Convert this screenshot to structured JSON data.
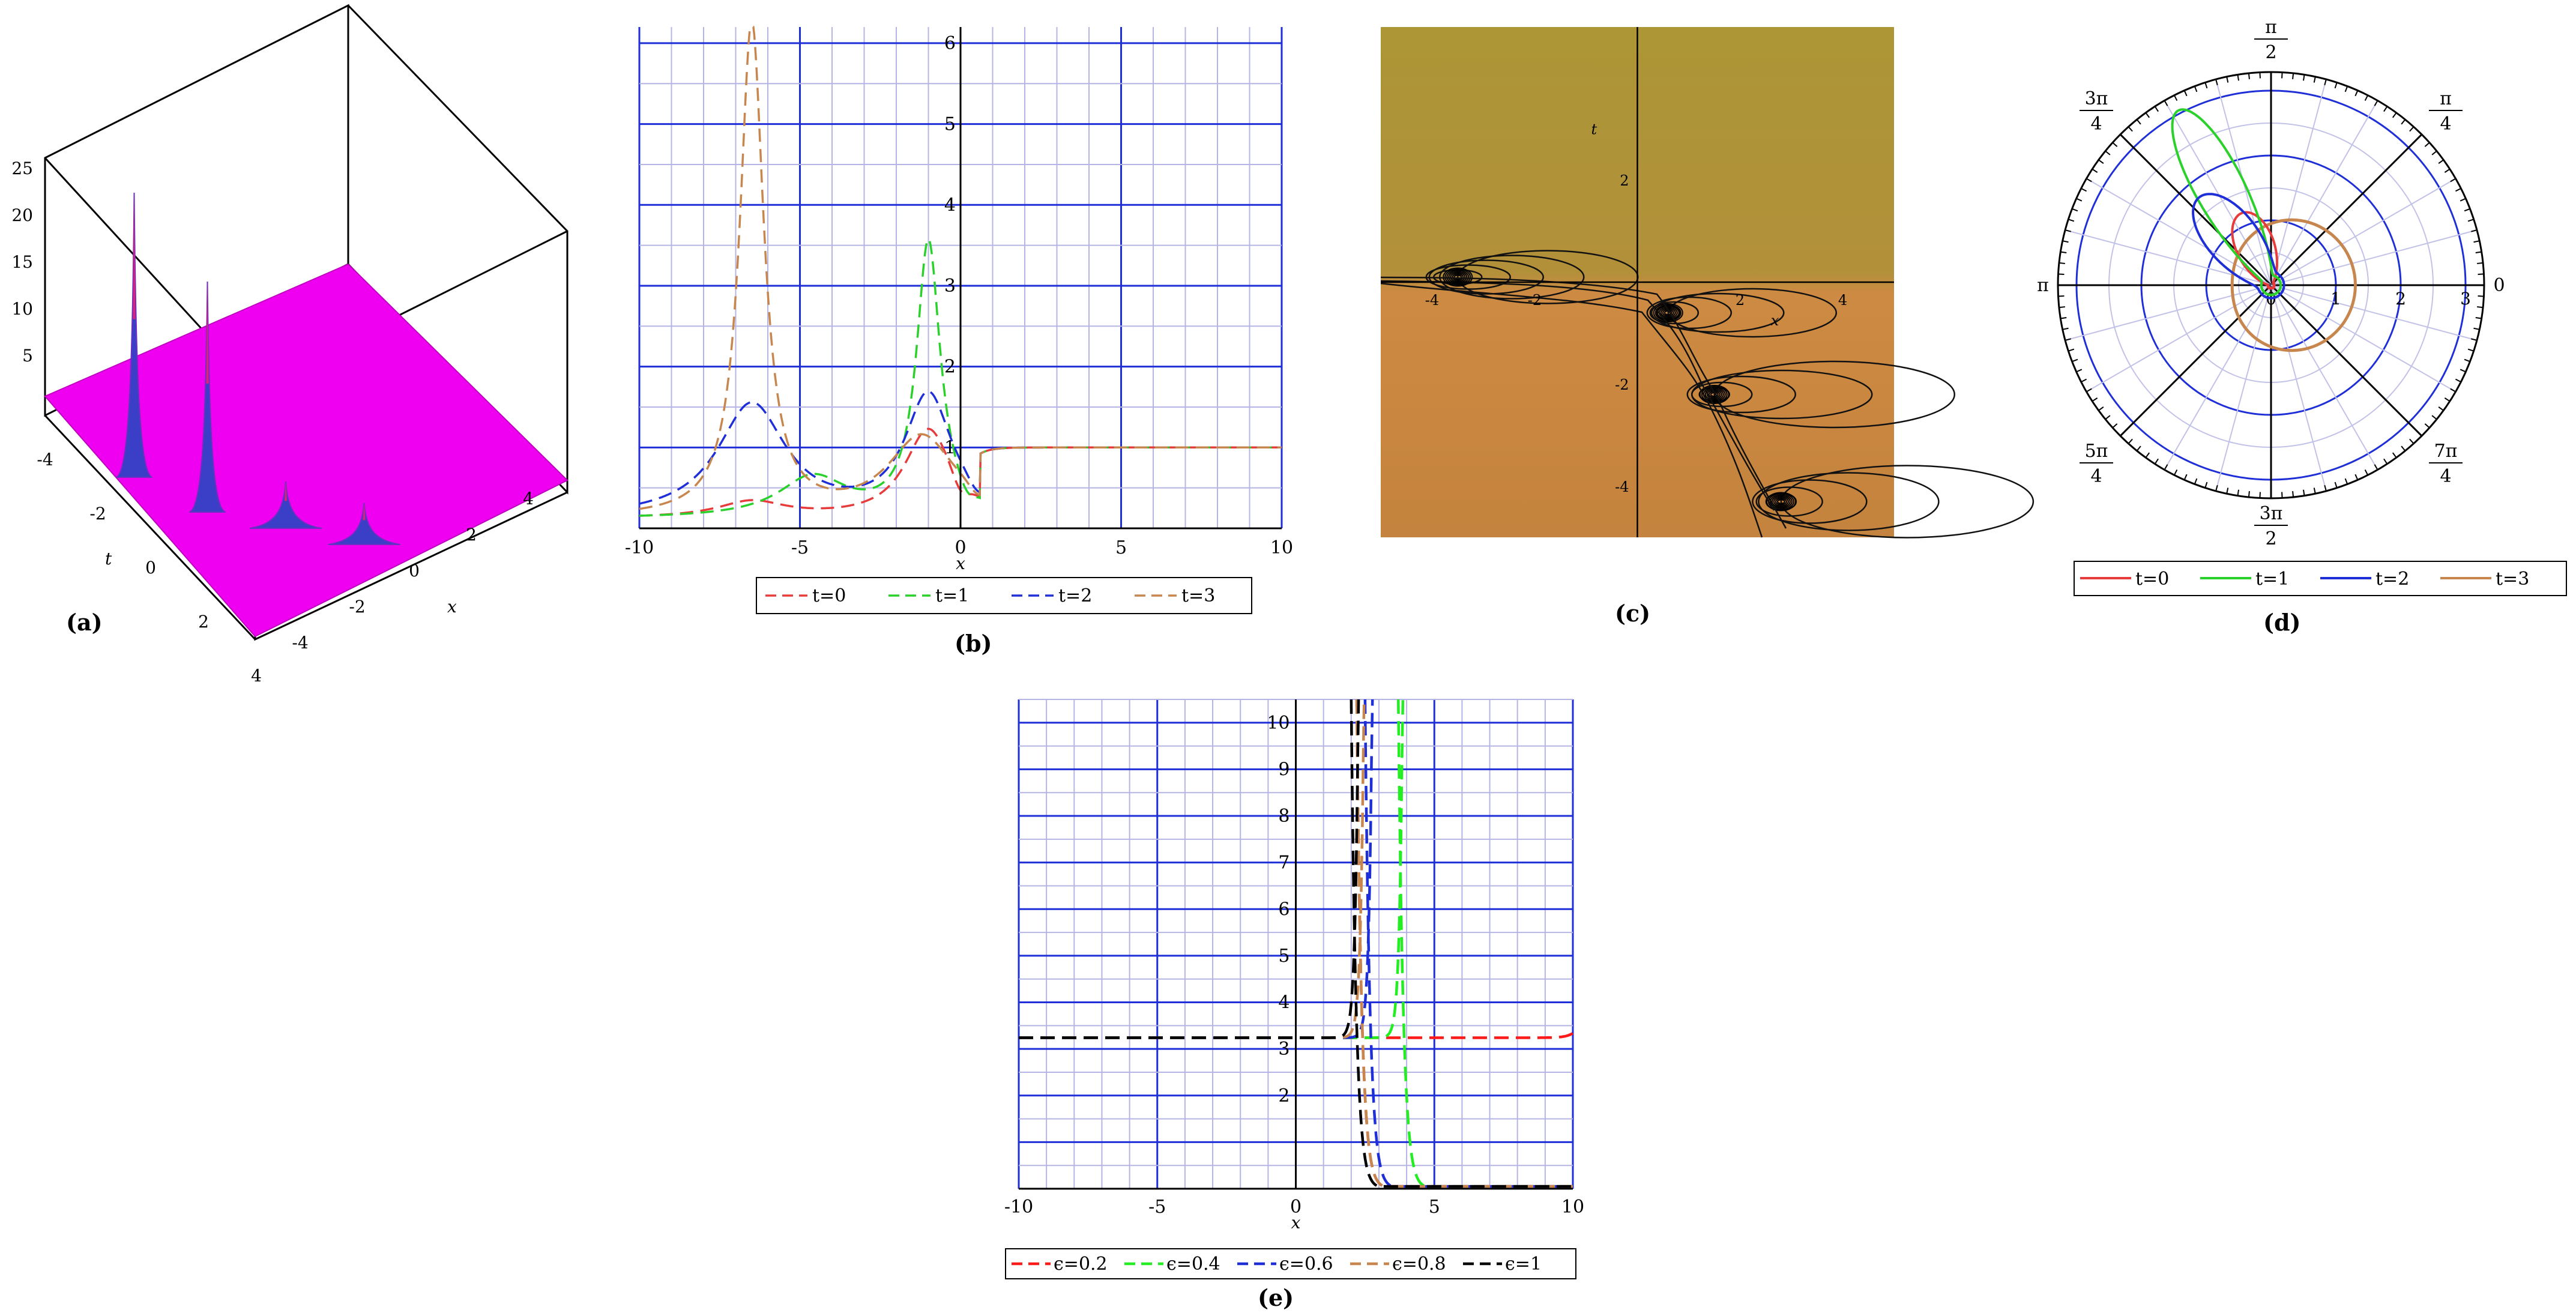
{
  "panels": {
    "a": {
      "label": "(a)"
    },
    "b": {
      "label": "(b)"
    },
    "c": {
      "label": "(c)"
    },
    "d": {
      "label": "(d)"
    },
    "e": {
      "label": "(e)"
    }
  },
  "chart_data": [
    {
      "id": "a",
      "type": "surface",
      "surface_color": "#f000f0",
      "axes": {
        "x": "x",
        "t": "t"
      },
      "x_ticks": [
        "-4",
        "-2",
        "0",
        "2",
        "4"
      ],
      "t_ticks": [
        "-4",
        "-2",
        "0",
        "2",
        "4"
      ],
      "z_ticks": [
        "5",
        "10",
        "15",
        "20",
        "25"
      ],
      "peaks": [
        {
          "x": -4.5,
          "t": -1.5,
          "height": 26
        },
        {
          "x": -3.5,
          "t": 0.5,
          "height": 21
        },
        {
          "x": -2,
          "t": 2,
          "height": 4
        },
        {
          "x": -0.5,
          "t": 3.5,
          "height": 3.5
        }
      ],
      "base_level": 1
    },
    {
      "id": "b",
      "type": "line",
      "xlabel": "x",
      "xlim": [
        -10,
        10
      ],
      "ylim": [
        0,
        6.2
      ],
      "x_ticks": [
        "-10",
        "-5",
        "0",
        "5",
        "10"
      ],
      "y_ticks": [
        "1",
        "2",
        "3",
        "4",
        "5",
        "6"
      ],
      "grid": true,
      "legend_position": "bottom",
      "series": [
        {
          "name": "t=0",
          "color": "#e83b3b",
          "peak_x": -1.0,
          "peak_y": 1.2,
          "hump_x": -6.5,
          "hump_y": 0.3,
          "dip_x": 0.0,
          "dip_y": 0.0
        },
        {
          "name": "t=1",
          "color": "#2bd12b",
          "peak_x": -1.0,
          "peak_y": 3.5,
          "hump_x": -4.6,
          "hump_y": 0.6,
          "dip_x": 0.2,
          "dip_y": 0.5
        },
        {
          "name": "t=2",
          "color": "#1f2fd8",
          "peak_x": -1.0,
          "peak_y": 1.6,
          "hump_x": -6.5,
          "hump_y": 1.5,
          "dip_x": 0.5,
          "dip_y": 0.8
        },
        {
          "name": "t=3",
          "color": "#c8864f",
          "peak_x": -6.5,
          "peak_y": 6.2,
          "hump_x": -1.2,
          "hump_y": 1.1,
          "dip_x": 0.5,
          "dip_y": 0.9
        }
      ]
    },
    {
      "id": "c",
      "type": "contour",
      "xlabel": "x",
      "ylabel": "t",
      "x_ticks": [
        "-4",
        "-2",
        "2",
        "4"
      ],
      "y_ticks": [
        "2",
        "-2",
        "-4"
      ],
      "xlim": [
        -5,
        5
      ],
      "ylim": [
        -5,
        5
      ],
      "centers": [
        {
          "x": -3.5,
          "t": 0.1
        },
        {
          "x": 0.6,
          "t": -0.6
        },
        {
          "x": 1.5,
          "t": -2.2
        },
        {
          "x": 2.8,
          "t": -4.3
        }
      ]
    },
    {
      "id": "d",
      "type": "polar",
      "angle_labels": [
        "0",
        "π/2",
        "π",
        "3π/2",
        "π/4",
        "3π/4",
        "5π/4",
        "7π/4"
      ],
      "radial_ticks": [
        "1",
        "2",
        "3"
      ],
      "legend_position": "bottom",
      "series": [
        {
          "name": "t=0",
          "color": "#e83b3b"
        },
        {
          "name": "t=1",
          "color": "#2bd12b"
        },
        {
          "name": "t=2",
          "color": "#1f2fd8"
        },
        {
          "name": "t=3",
          "color": "#c8864f"
        }
      ]
    },
    {
      "id": "e",
      "type": "line",
      "xlabel": "x",
      "xlim": [
        -10,
        10
      ],
      "ylim": [
        0,
        10.5
      ],
      "x_ticks": [
        "-10",
        "-5",
        "0",
        "5",
        "10"
      ],
      "y_ticks": [
        "2",
        "3",
        "4",
        "5",
        "6",
        "7",
        "8",
        "9",
        "10"
      ],
      "grid": true,
      "legend_position": "bottom",
      "series": [
        {
          "name": "ϵ=0.2",
          "color": "#ff1a1a",
          "plateau": 3.24,
          "rise_x": 9.6,
          "drop_x": 2.2
        },
        {
          "name": "ϵ=0.4",
          "color": "#22ee22",
          "plateau": 3.24,
          "rise_x": 3.2,
          "drop_x": 3.7
        },
        {
          "name": "ϵ=0.6",
          "color": "#1f2fd8",
          "plateau": 3.24,
          "rise_x": 2.1,
          "drop_x": 2.5
        },
        {
          "name": "ϵ=0.8",
          "color": "#c8864f",
          "plateau": 3.24,
          "rise_x": 1.8,
          "drop_x": 2.2
        },
        {
          "name": "ϵ=1",
          "color": "#000000",
          "plateau": 3.24,
          "rise_x": 1.6,
          "drop_x": 2.0
        }
      ]
    }
  ]
}
